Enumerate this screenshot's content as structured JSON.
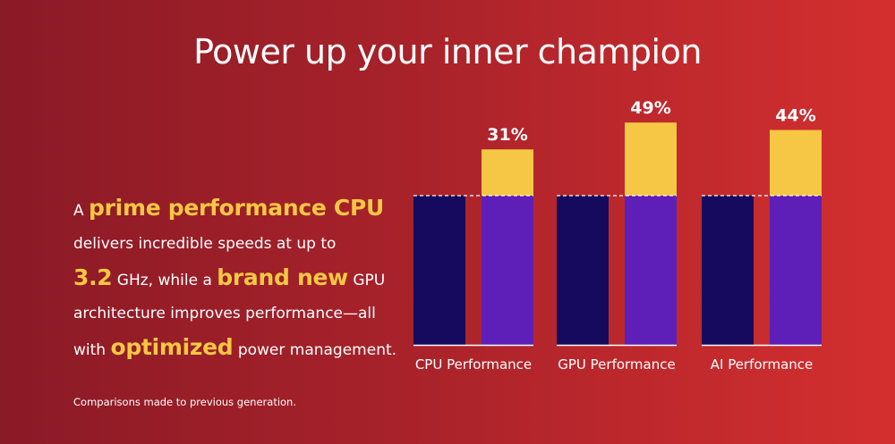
{
  "title": "Power up your inner champion",
  "copy": {
    "p1": "A",
    "hl1": "prime performance CPU",
    "p2": "delivers incredible speeds at up to",
    "hl2": "3.2",
    "p3": "GHz, while a",
    "hl3": "brand new",
    "p4": "GPU architecture improves performance—all with",
    "hl4": "optimized",
    "p5": "power management."
  },
  "footnote": "Comparisons made to previous generation.",
  "colors": {
    "previous_bar": "#150a5e",
    "new_bar": "#5e1fb8",
    "gain_bar": "#f6c744",
    "text": "#ffffff",
    "highlight": "#f6c744"
  },
  "chart_data": {
    "type": "bar",
    "categories": [
      "CPU Performance",
      "GPU Performance",
      "AI Performance"
    ],
    "baseline": 100,
    "series": [
      {
        "values": [
          100,
          100,
          100
        ]
      },
      {
        "values": [
          131,
          149,
          144
        ]
      }
    ],
    "improvement_labels": [
      "31%",
      "49%",
      "44%"
    ],
    "improvement_values": [
      31,
      49,
      44
    ],
    "ylim": [
      0,
      150
    ],
    "grid": false,
    "legend": "none"
  }
}
